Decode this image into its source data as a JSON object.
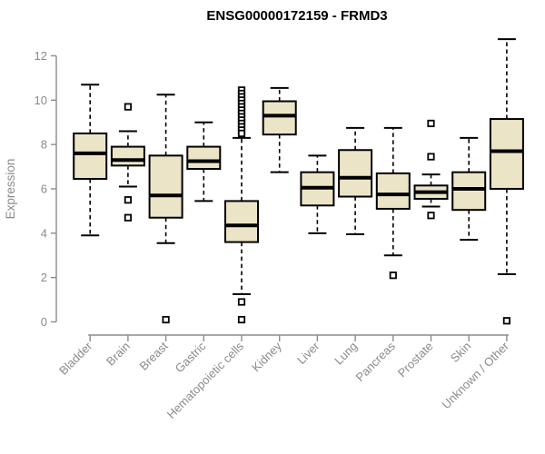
{
  "chart_data": {
    "type": "boxplot",
    "title": "ENSG00000172159 - FRMD3",
    "ylabel": "Expression",
    "xlabel": "",
    "ylim": [
      0,
      12.9
    ],
    "yticks": [
      0,
      2,
      4,
      6,
      8,
      10,
      12
    ],
    "grid": false,
    "legend": "none",
    "colors": {
      "box_fill": "#ebe4c7",
      "box_stroke": "#000000",
      "median": "#000000",
      "whisker": "#000000",
      "axis": "#8b8b8b",
      "tick_label": "#8b8b8b",
      "title": "#000000",
      "background": "#ffffff"
    },
    "categories": [
      "Bladder",
      "Brain",
      "Breast",
      "Gastric",
      "Hematopoietic cells",
      "Kidney",
      "Liver",
      "Lung",
      "Pancreas",
      "Prostate",
      "Skin",
      "Unknown / Other"
    ],
    "series": [
      {
        "category": "Bladder",
        "whisker_low": 3.9,
        "q1": 6.45,
        "median": 7.6,
        "q3": 8.5,
        "whisker_high": 10.7,
        "outliers": []
      },
      {
        "category": "Brain",
        "whisker_low": 6.1,
        "q1": 7.05,
        "median": 7.3,
        "q3": 7.9,
        "whisker_high": 8.6,
        "outliers": [
          9.7,
          5.5,
          4.7
        ]
      },
      {
        "category": "Breast",
        "whisker_low": 3.55,
        "q1": 4.7,
        "median": 5.7,
        "q3": 7.5,
        "whisker_high": 10.25,
        "outliers": [
          0.1
        ]
      },
      {
        "category": "Gastric",
        "whisker_low": 5.45,
        "q1": 6.9,
        "median": 7.25,
        "q3": 7.9,
        "whisker_high": 9.0,
        "outliers": []
      },
      {
        "category": "Hematopoietic cells",
        "whisker_low": 1.25,
        "q1": 3.6,
        "median": 4.35,
        "q3": 5.45,
        "whisker_high": 8.3,
        "outliers": [
          10.45,
          10.3,
          10.15,
          10.0,
          9.85,
          9.7,
          9.55,
          9.4,
          9.25,
          9.1,
          8.95,
          8.8,
          8.65,
          8.5,
          0.9,
          0.1
        ]
      },
      {
        "category": "Kidney",
        "whisker_low": 6.75,
        "q1": 8.45,
        "median": 9.3,
        "q3": 9.95,
        "whisker_high": 10.55,
        "outliers": []
      },
      {
        "category": "Liver",
        "whisker_low": 4.0,
        "q1": 5.25,
        "median": 6.05,
        "q3": 6.75,
        "whisker_high": 7.5,
        "outliers": []
      },
      {
        "category": "Lung",
        "whisker_low": 3.95,
        "q1": 5.65,
        "median": 6.5,
        "q3": 7.75,
        "whisker_high": 8.75,
        "outliers": []
      },
      {
        "category": "Pancreas",
        "whisker_low": 3.0,
        "q1": 5.1,
        "median": 5.75,
        "q3": 6.7,
        "whisker_high": 8.75,
        "outliers": [
          2.1
        ]
      },
      {
        "category": "Prostate",
        "whisker_low": 5.2,
        "q1": 5.55,
        "median": 5.85,
        "q3": 6.15,
        "whisker_high": 6.65,
        "outliers": [
          8.95,
          7.45,
          4.8
        ]
      },
      {
        "category": "Skin",
        "whisker_low": 3.7,
        "q1": 5.05,
        "median": 6.0,
        "q3": 6.75,
        "whisker_high": 8.3,
        "outliers": []
      },
      {
        "category": "Unknown / Other",
        "whisker_low": 2.15,
        "q1": 6.0,
        "median": 7.7,
        "q3": 9.15,
        "whisker_high": 12.75,
        "outliers": [
          0.05
        ]
      }
    ]
  }
}
